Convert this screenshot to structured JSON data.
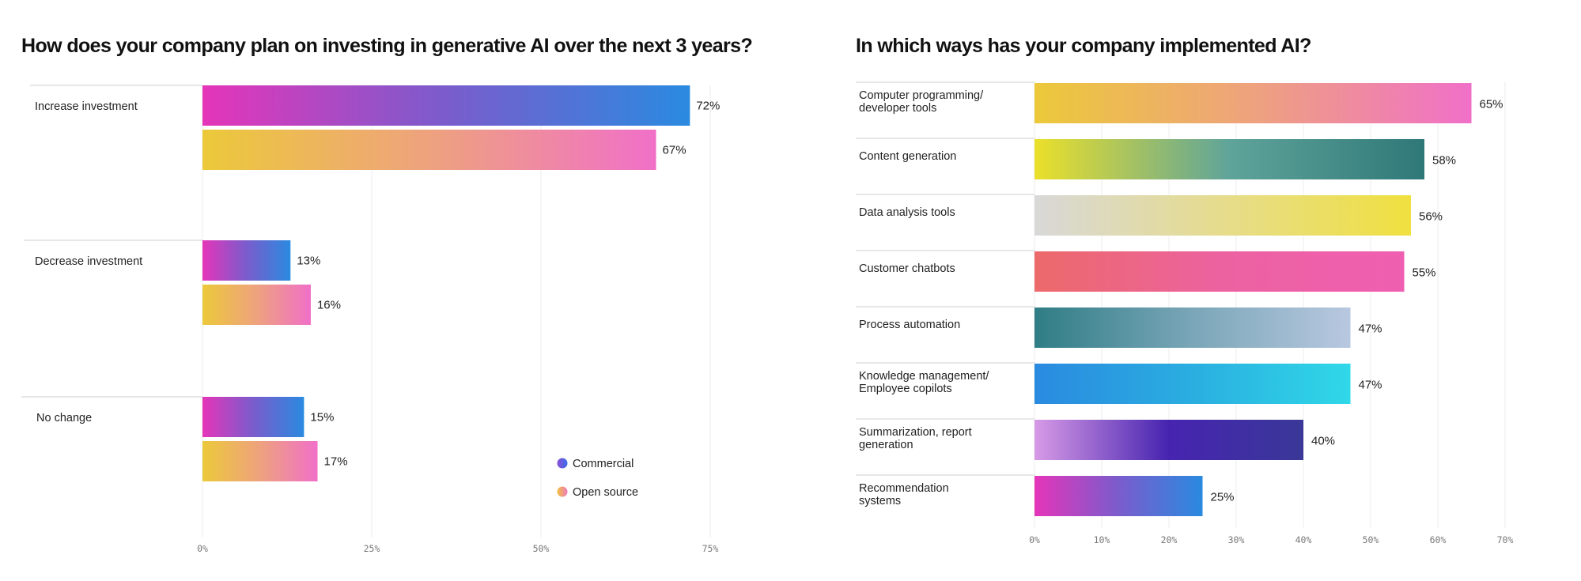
{
  "chart_data": [
    {
      "type": "bar",
      "orientation": "horizontal",
      "title": "How does your company plan on investing in generative AI over the next 3 years?",
      "categories": [
        "Increase investment",
        "Decrease investment",
        "No change"
      ],
      "series": [
        {
          "name": "Commercial",
          "values": [
            72,
            13,
            15
          ],
          "labels": [
            "72%",
            "13%",
            "15%"
          ],
          "gradient": [
            "#e535b9",
            "#7a5ccc",
            "#2a8ae0"
          ]
        },
        {
          "name": "Open source",
          "values": [
            67,
            16,
            17
          ],
          "labels": [
            "67%",
            "16%",
            "17%"
          ],
          "gradient": [
            "#ecc93a",
            "#eea27e",
            "#f070c8"
          ]
        }
      ],
      "xlim": [
        0,
        75
      ],
      "xticks": [
        0,
        25,
        50,
        75
      ],
      "xtick_labels": [
        "0%",
        "25%",
        "50%",
        "75%"
      ],
      "grid": true,
      "legend_position": "bottom-right",
      "legend_swatches": [
        [
          "#8a4fd8",
          "#3a6ee8"
        ],
        [
          "#f0c040",
          "#f07ac0"
        ]
      ]
    },
    {
      "type": "bar",
      "orientation": "horizontal",
      "title": "In which ways has your company implemented AI?",
      "categories": [
        "Computer programming/\ndeveloper tools",
        "Content generation",
        "Data analysis tools",
        "Customer chatbots",
        "Process automation",
        "Knowledge management/\nEmployee copilots",
        "Summarization, report\ngeneration",
        "Recommendation\nsystems"
      ],
      "values": [
        65,
        58,
        56,
        55,
        47,
        47,
        40,
        25
      ],
      "labels": [
        "65%",
        "58%",
        "56%",
        "55%",
        "47%",
        "47%",
        "40%",
        "25%"
      ],
      "gradients": [
        [
          "#ecc93a",
          "#eea27e",
          "#f070c8"
        ],
        [
          "#ebe02a",
          "#5fa49a",
          "#2f7878"
        ],
        [
          "#d8d8d8",
          "#e6dc8c",
          "#f0e040"
        ],
        [
          "#ec6a6a",
          "#ec62a0",
          "#ef5fb1"
        ],
        [
          "#2f7d85",
          "#7aa6b8",
          "#b8c8e0"
        ],
        [
          "#2a8ae0",
          "#2aaee0",
          "#30d8e8"
        ],
        [
          "#d79ae6",
          "#4624b0",
          "#3a3898"
        ],
        [
          "#e535b9",
          "#7a5ccc",
          "#2a8ae0"
        ]
      ],
      "xlim": [
        0,
        70
      ],
      "xticks": [
        0,
        10,
        20,
        30,
        40,
        50,
        60,
        70
      ],
      "xtick_labels": [
        "0%",
        "10%",
        "20%",
        "30%",
        "40%",
        "50%",
        "60%",
        "70%"
      ],
      "grid": true
    }
  ]
}
